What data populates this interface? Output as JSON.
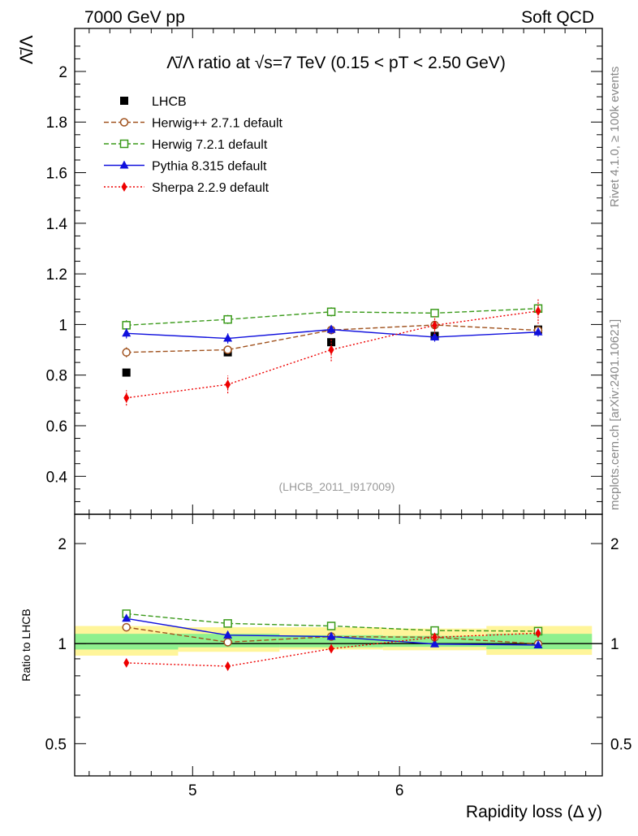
{
  "header": {
    "left": "7000 GeV pp",
    "right": "Soft QCD"
  },
  "side_text": {
    "rivet": "Rivet 4.1.0, ≥ 100k events",
    "mcplots": "mcplots.cern.ch [arXiv:2401.10621]"
  },
  "chart_data": [
    {
      "type": "line",
      "panel": "main",
      "title": "Λ̄/Λ ratio at √s=7 TeV (0.15 < pT < 2.50 GeV)",
      "ylabel": "Λ̄/Λ",
      "xlim": [
        4.43,
        6.98
      ],
      "ylim": [
        0.25,
        2.17
      ],
      "yticks": [
        0.4,
        0.6,
        0.8,
        1,
        1.2,
        1.4,
        1.6,
        1.8,
        2
      ],
      "ytick_labels": [
        "0.4",
        "0.6",
        "0.8",
        "1",
        "1.2",
        "1.4",
        "1.6",
        "1.8",
        "2"
      ],
      "x": [
        4.68,
        5.17,
        5.67,
        6.17,
        6.67
      ],
      "watermark": "(LHCB_2011_I917009)",
      "series": [
        {
          "name": "LHCB",
          "color": "#000000",
          "marker": "square-filled",
          "line": "none",
          "values": [
            0.81,
            0.89,
            0.93,
            0.955,
            0.98
          ],
          "errors": [
            0.0,
            0.0,
            0.0,
            0.0,
            0.0
          ]
        },
        {
          "name": "Herwig++ 2.7.1 default",
          "color": "#a0521e",
          "marker": "circle-open",
          "line": "dashed",
          "values": [
            0.89,
            0.9,
            0.978,
            0.998,
            0.977
          ],
          "errors": [
            0.02,
            0.01,
            0.015,
            0.01,
            0.012
          ]
        },
        {
          "name": "Herwig 7.2.1 default",
          "color": "#3a9a1a",
          "marker": "square-open",
          "line": "dashed",
          "values": [
            0.997,
            1.02,
            1.05,
            1.045,
            1.063
          ],
          "errors": [
            0.02,
            0.018,
            0.018,
            0.012,
            0.015
          ]
        },
        {
          "name": "Pythia 8.315 default",
          "color": "#1010dd",
          "marker": "triangle-filled",
          "line": "solid",
          "values": [
            0.965,
            0.945,
            0.98,
            0.95,
            0.97
          ],
          "errors": [
            0.02,
            0.02,
            0.018,
            0.018,
            0.018
          ]
        },
        {
          "name": "Sherpa 2.2.9 default",
          "color": "#ee0000",
          "marker": "diamond-filled",
          "line": "dotted",
          "values": [
            0.71,
            0.763,
            0.9,
            0.997,
            1.053
          ],
          "errors": [
            0.03,
            0.035,
            0.045,
            0.035,
            0.05
          ]
        }
      ]
    },
    {
      "type": "line",
      "panel": "ratio",
      "ylabel": "Ratio to LHCB",
      "xlabel": "Rapidity loss (Δ y)",
      "yscale": "log",
      "ylim": [
        0.4,
        2.45
      ],
      "yticks": [
        0.5,
        1,
        2
      ],
      "ytick_labels": [
        "0.5",
        "1",
        "2"
      ],
      "xticks": [
        5,
        6
      ],
      "xtick_labels": [
        "5",
        "6"
      ],
      "x": [
        4.68,
        5.17,
        5.67,
        6.17,
        6.67
      ],
      "band_edges": [
        4.43,
        4.93,
        5.42,
        5.92,
        6.42,
        6.93
      ],
      "band_yellow_low": [
        0.92,
        0.945,
        0.96,
        0.955,
        0.925
      ],
      "band_yellow_high": [
        1.13,
        1.12,
        1.12,
        1.11,
        1.13
      ],
      "band_green_low": [
        0.96,
        0.975,
        0.975,
        0.978,
        0.962
      ],
      "band_green_high": [
        1.07,
        1.07,
        1.06,
        1.055,
        1.07
      ],
      "series": [
        {
          "name": "Herwig++ 2.7.1 default",
          "color": "#a0521e",
          "marker": "circle-open",
          "line": "dashed",
          "values": [
            1.12,
            1.01,
            1.05,
            1.045,
            0.998
          ]
        },
        {
          "name": "Herwig 7.2.1 default",
          "color": "#3a9a1a",
          "marker": "square-open",
          "line": "dashed",
          "values": [
            1.23,
            1.15,
            1.13,
            1.095,
            1.09
          ]
        },
        {
          "name": "Pythia 8.315 default",
          "color": "#1010dd",
          "marker": "triangle-filled",
          "line": "solid",
          "values": [
            1.19,
            1.06,
            1.05,
            0.997,
            0.99
          ]
        },
        {
          "name": "Sherpa 2.2.9 default",
          "color": "#ee0000",
          "marker": "diamond-filled",
          "line": "dotted",
          "values": [
            0.875,
            0.855,
            0.965,
            1.045,
            1.075
          ]
        }
      ]
    }
  ]
}
